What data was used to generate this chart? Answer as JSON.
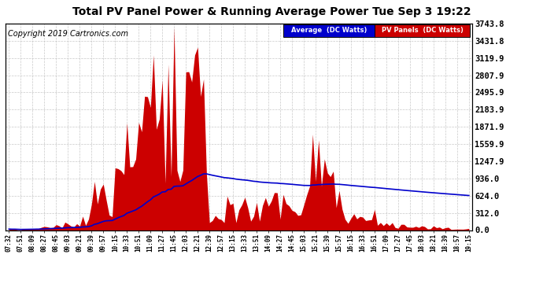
{
  "title": "Total PV Panel Power & Running Average Power Tue Sep 3 19:22",
  "copyright": "Copyright 2019 Cartronics.com",
  "ylabel_right_ticks": [
    0.0,
    312.0,
    624.0,
    936.0,
    1247.9,
    1559.9,
    1871.9,
    2183.9,
    2495.9,
    2807.9,
    3119.9,
    3431.8,
    3743.8
  ],
  "ymax": 3743.8,
  "ymin": 0.0,
  "background_color": "#ffffff",
  "plot_background": "#ffffff",
  "grid_color": "#bbbbbb",
  "pv_color": "#cc0000",
  "avg_color": "#0000cc",
  "legend_avg_bg": "#0000cc",
  "legend_pv_bg": "#cc0000",
  "title_fontsize": 10,
  "copyright_fontsize": 7,
  "tick_labels": [
    "07:32",
    "07:51",
    "08:09",
    "08:27",
    "08:45",
    "09:03",
    "09:21",
    "09:39",
    "09:57",
    "10:15",
    "10:33",
    "10:51",
    "11:09",
    "11:27",
    "11:45",
    "12:03",
    "12:21",
    "12:39",
    "12:57",
    "13:15",
    "13:33",
    "13:51",
    "14:09",
    "14:27",
    "14:45",
    "15:03",
    "15:21",
    "15:39",
    "15:57",
    "16:15",
    "16:33",
    "16:51",
    "17:09",
    "17:27",
    "17:45",
    "18:03",
    "18:21",
    "18:39",
    "18:57",
    "19:15"
  ]
}
